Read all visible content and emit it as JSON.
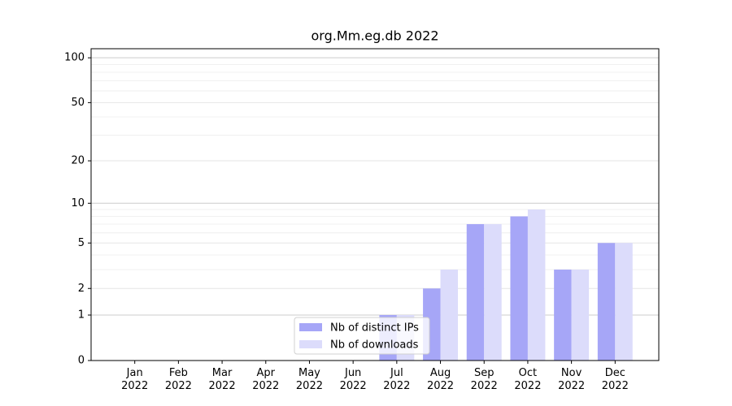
{
  "chart_data": {
    "type": "bar",
    "title": "org.Mm.eg.db 2022",
    "categories": [
      "Jan\n2022",
      "Feb\n2022",
      "Mar\n2022",
      "Apr\n2022",
      "May\n2022",
      "Jun\n2022",
      "Jul\n2022",
      "Aug\n2022",
      "Sep\n2022",
      "Oct\n2022",
      "Nov\n2022",
      "Dec\n2022"
    ],
    "series": [
      {
        "name": "Nb of distinct IPs",
        "color": "#a6a6f7",
        "values": [
          0,
          0,
          0,
          0,
          0,
          0,
          1,
          2,
          7,
          8,
          3,
          5
        ]
      },
      {
        "name": "Nb of downloads",
        "color": "#dcdcfb",
        "values": [
          0,
          0,
          0,
          0,
          0,
          0,
          1,
          3,
          7,
          9,
          3,
          5
        ]
      }
    ],
    "yscale": "log1p",
    "ylim": [
      0,
      115
    ],
    "yticks": [
      0,
      1,
      2,
      5,
      10,
      20,
      50,
      100
    ],
    "minor_yticks": [
      3,
      4,
      6,
      7,
      8,
      9,
      30,
      40,
      60,
      70,
      80,
      90
    ],
    "grid": true,
    "legend": "lower center"
  }
}
